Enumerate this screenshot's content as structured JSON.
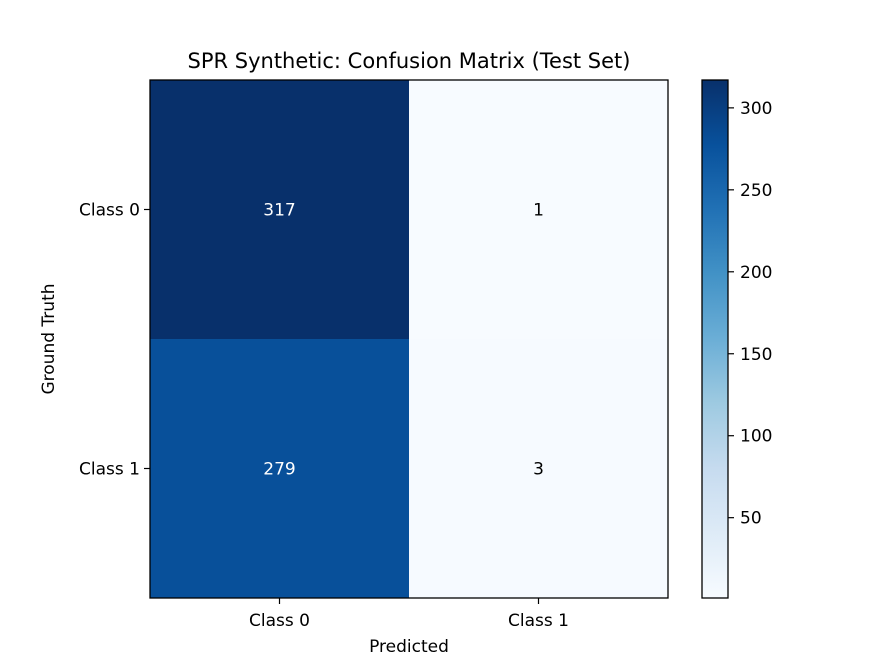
{
  "chart_data": {
    "type": "heatmap",
    "title": "SPR Synthetic: Confusion Matrix (Test Set)",
    "xlabel": "Predicted",
    "ylabel": "Ground Truth",
    "x_categories": [
      "Class 0",
      "Class 1"
    ],
    "y_categories": [
      "Class 0",
      "Class 1"
    ],
    "values": [
      [
        317,
        1
      ],
      [
        279,
        3
      ]
    ],
    "colormap": "Blues",
    "colorbar": {
      "range": [
        1,
        317
      ],
      "ticks": [
        50,
        100,
        150,
        200,
        250,
        300
      ]
    }
  }
}
